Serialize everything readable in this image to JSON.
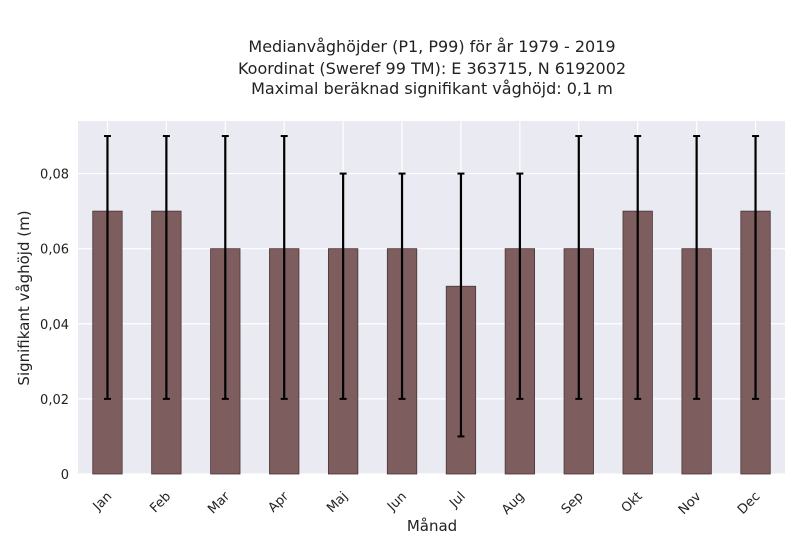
{
  "chart_data": {
    "type": "bar",
    "title_lines": [
      "Medianvåghöjder (P1, P99) för år 1979 - 2019",
      "Koordinat (Sweref 99 TM): E 363715, N 6192002",
      "Maximal beräknad signifikant våghöjd: 0,1 m"
    ],
    "xlabel": "Månad",
    "ylabel": "Signifikant våghöjd (m)",
    "categories": [
      "Jan",
      "Feb",
      "Mar",
      "Apr",
      "Maj",
      "Jun",
      "Jul",
      "Aug",
      "Sep",
      "Okt",
      "Nov",
      "Dec"
    ],
    "values": [
      0.07,
      0.07,
      0.06,
      0.06,
      0.06,
      0.06,
      0.05,
      0.06,
      0.06,
      0.07,
      0.06,
      0.07
    ],
    "error_low": [
      0.02,
      0.02,
      0.02,
      0.02,
      0.02,
      0.02,
      0.01,
      0.02,
      0.02,
      0.02,
      0.02,
      0.02
    ],
    "error_high": [
      0.09,
      0.09,
      0.09,
      0.09,
      0.08,
      0.08,
      0.08,
      0.08,
      0.09,
      0.09,
      0.09,
      0.09
    ],
    "yticks": [
      0,
      0.02,
      0.04,
      0.06,
      0.08
    ],
    "ytick_labels": [
      "0",
      "0,02",
      "0,04",
      "0,06",
      "0,08"
    ],
    "ylim": [
      0,
      0.094
    ],
    "grid": true,
    "colors": {
      "bar": "#7d5d5d",
      "background": "#eaeaf2",
      "grid": "#ffffff",
      "error": "#000000"
    }
  }
}
